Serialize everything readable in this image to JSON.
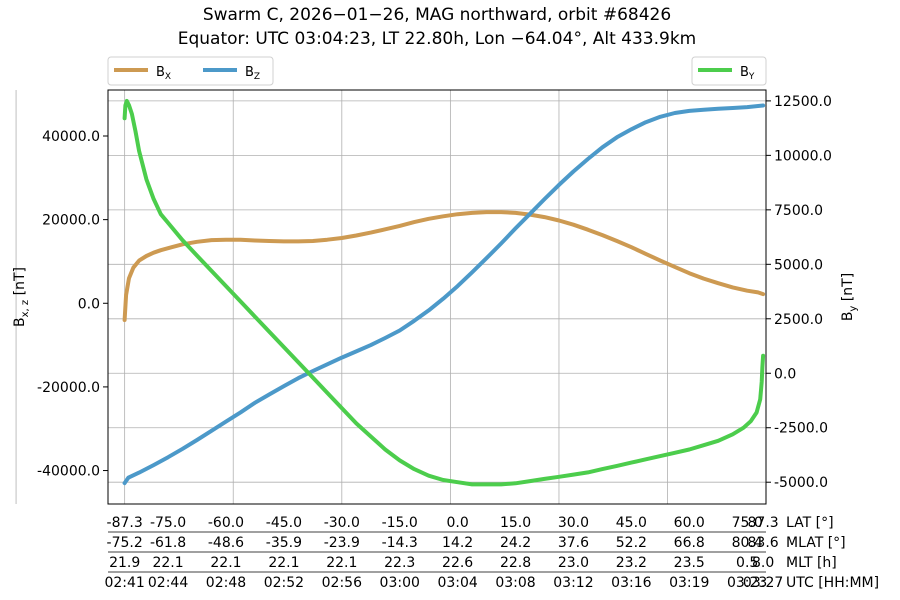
{
  "chart_data": {
    "type": "line",
    "title_line1": "Swarm C, 2026−01−26, MAG northward, orbit #68426",
    "title_line2": "Equator: UTC 03:04:23, LT 22.80h, Lon −64.04°, Alt 433.9km",
    "left_axis": {
      "label_base": "B",
      "label_sub": "x, z",
      "label_unit": " [nT]",
      "ylim": [
        -48000,
        51000
      ],
      "ticks": [
        -40000,
        -20000,
        0,
        20000,
        40000
      ],
      "tick_labels": [
        "-40000.0",
        "-20000.0",
        "0.0",
        "20000.0",
        "40000.0"
      ]
    },
    "right_axis": {
      "label_base": "B",
      "label_sub": "y",
      "label_unit": " [nT]",
      "ylim": [
        -6000,
        13000
      ],
      "ticks": [
        -5000,
        -2500,
        0,
        2500,
        5000,
        7500,
        10000,
        12500
      ],
      "tick_labels": [
        "-5000.0",
        "-2500.0",
        "0.0",
        "2500.0",
        "5000.0",
        "7500.0",
        "10000.0",
        "12500.0"
      ]
    },
    "xlim": [
      -2.3,
      88.6
    ],
    "x_grid": [
      -75,
      -60,
      -45,
      -30,
      -15,
      0,
      15,
      30,
      45,
      60,
      75
    ],
    "grid": true,
    "x_axis_rows": [
      {
        "name": "LAT [°]",
        "values": [
          "-87.3",
          "-75.0",
          "-60.0",
          "-45.0",
          "-30.0",
          "-15.0",
          "0.0",
          "15.0",
          "30.0",
          "45.0",
          "60.0",
          "75.0",
          "87.3"
        ],
        "x": [
          0,
          6,
          14,
          22,
          30,
          38,
          46,
          54,
          62,
          70,
          78,
          86,
          88.2
        ]
      },
      {
        "name": "MLAT [°]",
        "values": [
          "-75.2",
          "-61.8",
          "-48.6",
          "-35.9",
          "-23.9",
          "-14.3",
          "14.2",
          "24.2",
          "37.6",
          "52.2",
          "66.8",
          "80.4",
          "83.6"
        ],
        "x": [
          0,
          6,
          14,
          22,
          30,
          38,
          46,
          54,
          62,
          70,
          78,
          86,
          88.2
        ]
      },
      {
        "name": "MLT [h]",
        "values": [
          "21.9",
          "22.1",
          "22.1",
          "22.1",
          "22.1",
          "22.3",
          "22.6",
          "22.8",
          "23.0",
          "23.2",
          "23.5",
          "0.5",
          "8.0"
        ],
        "x": [
          0,
          6,
          14,
          22,
          30,
          38,
          46,
          54,
          62,
          70,
          78,
          86,
          88.2
        ]
      },
      {
        "name": "UTC [HH:MM]",
        "values": [
          "02:41",
          "02:44",
          "02:48",
          "02:52",
          "02:56",
          "03:00",
          "03:04",
          "03:08",
          "03:12",
          "03:16",
          "03:19",
          "03:23",
          "03:27"
        ],
        "x": [
          0,
          6,
          14,
          22,
          30,
          38,
          46,
          54,
          62,
          70,
          78,
          86,
          88.2
        ]
      }
    ],
    "series": [
      {
        "name": "X",
        "axis": "left",
        "color": "#cd9a52",
        "x": [
          0,
          0.2,
          0.6,
          1.2,
          2,
          3,
          4,
          5,
          6.5,
          8,
          10,
          12,
          14,
          16,
          18,
          20,
          22,
          24,
          26,
          28,
          30,
          32,
          34,
          36,
          38,
          40,
          42,
          44,
          46,
          48,
          50,
          52,
          54,
          56,
          58,
          60,
          62,
          64,
          66,
          68,
          70,
          72,
          74,
          76,
          78,
          80,
          82,
          84,
          86,
          87.5,
          88.2
        ],
        "y": [
          -4000,
          2000,
          6000,
          8500,
          10200,
          11300,
          12100,
          12700,
          13400,
          14100,
          14700,
          15100,
          15200,
          15200,
          15000,
          14900,
          14800,
          14800,
          14900,
          15200,
          15600,
          16200,
          16900,
          17700,
          18500,
          19400,
          20200,
          20800,
          21300,
          21600,
          21800,
          21800,
          21600,
          21200,
          20600,
          19800,
          18800,
          17600,
          16300,
          14900,
          13400,
          11800,
          10200,
          8700,
          7200,
          5900,
          4800,
          3800,
          3000,
          2600,
          2200
        ]
      },
      {
        "name": "Z",
        "axis": "left",
        "color": "#4c99c9",
        "x": [
          0,
          0.5,
          2,
          4,
          6,
          8,
          10,
          12,
          14,
          16,
          18,
          20,
          22,
          24,
          26,
          28,
          30,
          32,
          34,
          36,
          38,
          40,
          42,
          44,
          46,
          48,
          50,
          52,
          54,
          56,
          58,
          60,
          62,
          64,
          66,
          68,
          70,
          72,
          74,
          76,
          78,
          80,
          82,
          84,
          86,
          88.2
        ],
        "y": [
          -43000,
          -41700,
          -40500,
          -38700,
          -36800,
          -34800,
          -32700,
          -30500,
          -28300,
          -26100,
          -23800,
          -21800,
          -19800,
          -17900,
          -16200,
          -14600,
          -13000,
          -11500,
          -10000,
          -8300,
          -6500,
          -4200,
          -1700,
          1100,
          4100,
          7400,
          10800,
          14300,
          17900,
          21400,
          24900,
          28300,
          31500,
          34500,
          37300,
          39700,
          41600,
          43300,
          44600,
          45500,
          46000,
          46300,
          46500,
          46700,
          46900,
          47300
        ]
      },
      {
        "name": "Y",
        "axis": "right",
        "color": "#4ccd4c",
        "x": [
          0,
          0.1,
          0.3,
          0.6,
          1,
          1.5,
          2,
          3,
          4,
          5,
          6,
          8,
          10,
          12,
          14,
          16,
          18,
          20,
          22,
          24,
          26,
          28,
          30,
          32,
          34,
          36,
          38,
          40,
          42,
          44,
          46,
          48,
          50,
          52,
          54,
          56,
          58,
          60,
          62,
          64,
          66,
          68,
          70,
          72,
          74,
          76,
          78,
          80,
          82,
          84,
          85.5,
          86.5,
          87.3,
          87.8,
          88,
          88.1,
          88.2
        ],
        "y": [
          11700,
          12300,
          12500,
          12300,
          11900,
          11100,
          10200,
          8900,
          8000,
          7300,
          6900,
          6100,
          5400,
          4700,
          4000,
          3300,
          2600,
          1900,
          1200,
          500,
          -200,
          -900,
          -1600,
          -2300,
          -2900,
          -3500,
          -4000,
          -4400,
          -4700,
          -4900,
          -5000,
          -5100,
          -5100,
          -5100,
          -5050,
          -4950,
          -4850,
          -4750,
          -4650,
          -4550,
          -4400,
          -4250,
          -4100,
          -3950,
          -3800,
          -3650,
          -3500,
          -3300,
          -3100,
          -2800,
          -2500,
          -2200,
          -1800,
          -1200,
          -400,
          300,
          800
        ]
      }
    ],
    "legend_left": [
      "X",
      "Z"
    ],
    "legend_right": [
      "Y"
    ],
    "legend_placement": "above plot: left (X, Z) and right (Y)"
  }
}
